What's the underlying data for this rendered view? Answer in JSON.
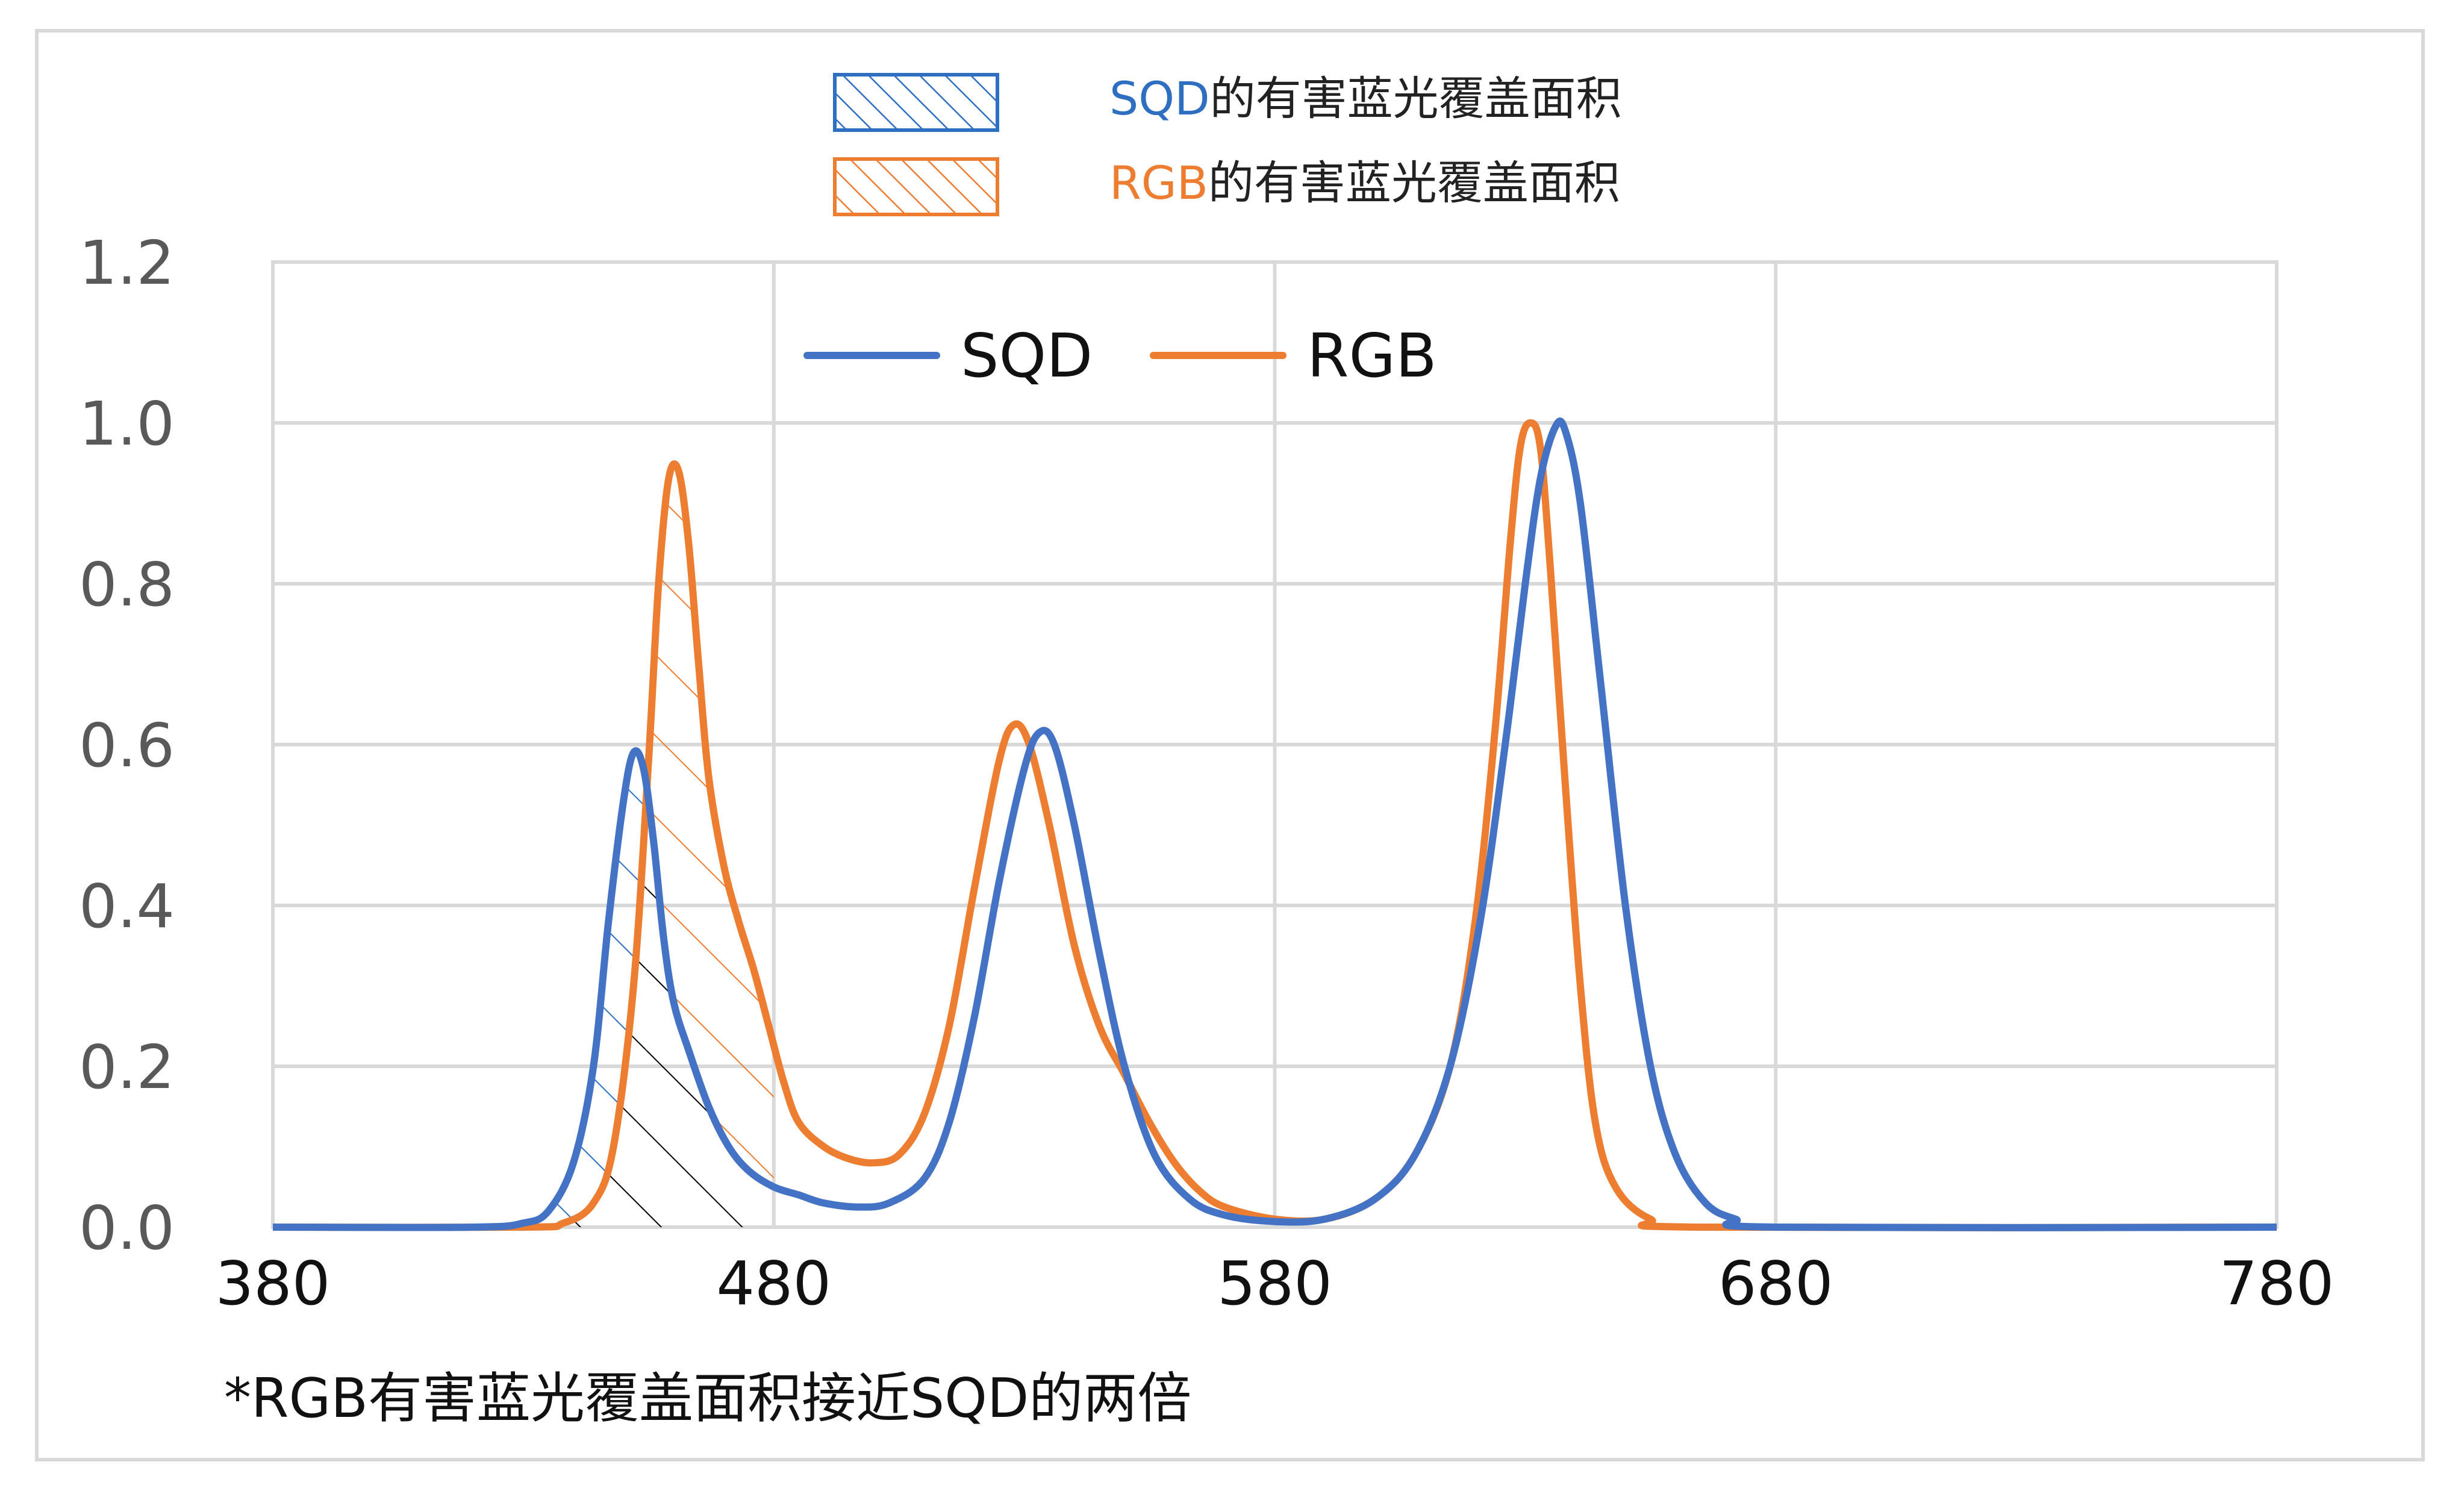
{
  "top_legend": [
    {
      "prefix": "SQD",
      "suffix": "的有害蓝光覆盖面积",
      "color": "#2f6fc2"
    },
    {
      "prefix": "RGB",
      "suffix": "的有害蓝光覆盖面积",
      "color": "#ed7d31"
    }
  ],
  "note": "*RGB有害蓝光覆盖面积接近SQD的两倍",
  "chart_data": {
    "type": "line",
    "xlim": [
      380,
      780
    ],
    "ylim": [
      0,
      1.2
    ],
    "x_ticks": [
      "380",
      "480",
      "580",
      "680",
      "780"
    ],
    "y_ticks": [
      "0.0",
      "0.2",
      "0.4",
      "0.6",
      "0.8",
      "1.0",
      "1.2"
    ],
    "grid": true,
    "legend_position": "top-center",
    "series": [
      {
        "name": "SQD",
        "color": "#4472c4",
        "points": [
          [
            380,
            0
          ],
          [
            420,
            0
          ],
          [
            430,
            0.005
          ],
          [
            435,
            0.02
          ],
          [
            440,
            0.08
          ],
          [
            444,
            0.2
          ],
          [
            447,
            0.38
          ],
          [
            450,
            0.53
          ],
          [
            452,
            0.59
          ],
          [
            454,
            0.57
          ],
          [
            456,
            0.48
          ],
          [
            458,
            0.36
          ],
          [
            460,
            0.28
          ],
          [
            463,
            0.22
          ],
          [
            467,
            0.15
          ],
          [
            471,
            0.1
          ],
          [
            475,
            0.07
          ],
          [
            480,
            0.05
          ],
          [
            485,
            0.04
          ],
          [
            490,
            0.03
          ],
          [
            497,
            0.025
          ],
          [
            503,
            0.03
          ],
          [
            510,
            0.06
          ],
          [
            515,
            0.13
          ],
          [
            520,
            0.26
          ],
          [
            525,
            0.43
          ],
          [
            530,
            0.57
          ],
          [
            533,
            0.615
          ],
          [
            536,
            0.6
          ],
          [
            540,
            0.5
          ],
          [
            545,
            0.34
          ],
          [
            550,
            0.2
          ],
          [
            556,
            0.09
          ],
          [
            563,
            0.035
          ],
          [
            570,
            0.015
          ],
          [
            580,
            0.007
          ],
          [
            590,
            0.01
          ],
          [
            600,
            0.035
          ],
          [
            608,
            0.09
          ],
          [
            615,
            0.2
          ],
          [
            621,
            0.38
          ],
          [
            626,
            0.6
          ],
          [
            630,
            0.8
          ],
          [
            633,
            0.93
          ],
          [
            636,
            0.995
          ],
          [
            638,
            0.99
          ],
          [
            641,
            0.9
          ],
          [
            645,
            0.68
          ],
          [
            650,
            0.4
          ],
          [
            655,
            0.2
          ],
          [
            660,
            0.09
          ],
          [
            666,
            0.03
          ],
          [
            672,
            0.01
          ],
          [
            680,
            0
          ],
          [
            780,
            0
          ]
        ]
      },
      {
        "name": "RGB",
        "color": "#ed7d31",
        "points": [
          [
            380,
            0
          ],
          [
            430,
            0
          ],
          [
            438,
            0.005
          ],
          [
            444,
            0.03
          ],
          [
            448,
            0.1
          ],
          [
            452,
            0.3
          ],
          [
            455,
            0.58
          ],
          [
            457,
            0.8
          ],
          [
            459,
            0.93
          ],
          [
            461,
            0.94
          ],
          [
            463,
            0.85
          ],
          [
            465,
            0.7
          ],
          [
            467,
            0.56
          ],
          [
            470,
            0.45
          ],
          [
            473,
            0.38
          ],
          [
            476,
            0.32
          ],
          [
            479,
            0.25
          ],
          [
            482,
            0.18
          ],
          [
            485,
            0.13
          ],
          [
            490,
            0.1
          ],
          [
            495,
            0.085
          ],
          [
            500,
            0.08
          ],
          [
            505,
            0.09
          ],
          [
            510,
            0.14
          ],
          [
            515,
            0.25
          ],
          [
            520,
            0.42
          ],
          [
            525,
            0.58
          ],
          [
            528,
            0.625
          ],
          [
            531,
            0.6
          ],
          [
            535,
            0.5
          ],
          [
            540,
            0.35
          ],
          [
            545,
            0.25
          ],
          [
            550,
            0.19
          ],
          [
            555,
            0.13
          ],
          [
            560,
            0.08
          ],
          [
            565,
            0.045
          ],
          [
            570,
            0.025
          ],
          [
            580,
            0.01
          ],
          [
            590,
            0.01
          ],
          [
            600,
            0.035
          ],
          [
            608,
            0.09
          ],
          [
            615,
            0.2
          ],
          [
            620,
            0.38
          ],
          [
            624,
            0.62
          ],
          [
            627,
            0.85
          ],
          [
            629,
            0.97
          ],
          [
            631,
            1.0
          ],
          [
            633,
            0.97
          ],
          [
            635,
            0.82
          ],
          [
            638,
            0.55
          ],
          [
            641,
            0.3
          ],
          [
            644,
            0.13
          ],
          [
            648,
            0.05
          ],
          [
            655,
            0.01
          ],
          [
            665,
            0
          ],
          [
            780,
            0
          ]
        ]
      }
    ]
  }
}
